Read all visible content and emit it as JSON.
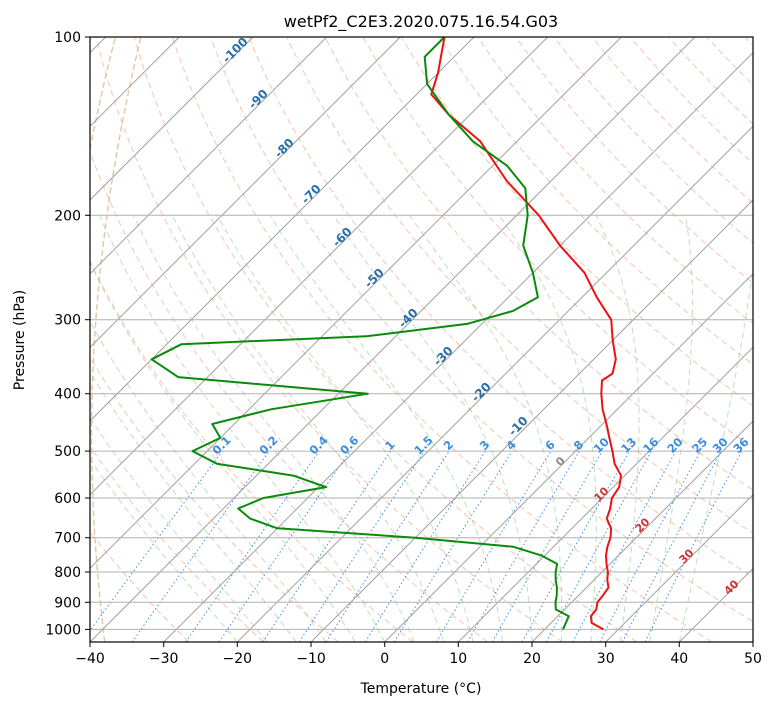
{
  "chart_data": {
    "type": "line",
    "subtype": "skew-T log-P diagram",
    "title": "wetPf2_C2E3.2020.075.16.54.G03",
    "xlabel": "Temperature (°C)",
    "ylabel": "Pressure (hPa)",
    "xlim": [
      -40,
      50
    ],
    "ylim": [
      1050,
      100
    ],
    "y_scale": "log",
    "grid": true,
    "x_ticks": [
      -40,
      -30,
      -20,
      -10,
      0,
      10,
      20,
      30,
      40,
      50
    ],
    "y_ticks": [
      100,
      200,
      300,
      400,
      500,
      600,
      700,
      800,
      900,
      1000
    ],
    "background_lines": {
      "isotherms": "gray solid, skewed 45°",
      "dry_adiabats": "dashed light red",
      "moist_adiabats": "dashed light green",
      "mixing_ratio_lines": "dotted blue",
      "wet_bulb_potential_temperature_curves": "dashed tan"
    },
    "isotherm_labels": [
      -100,
      -90,
      -80,
      -70,
      -60,
      -50,
      -40,
      -30,
      -20,
      -10
    ],
    "isotherm_label_color": "#2a6fa8",
    "mixing_ratio_labels": [
      "0.1",
      "0.2",
      "0.4",
      "0.6",
      "1",
      "1.5",
      "2",
      "3",
      "4",
      "6",
      "8",
      "10",
      "13",
      "16",
      "20",
      "25",
      "30",
      "36"
    ],
    "mixing_ratio_label_color": "#3a8ee0",
    "theta_labels_gray": [
      "0"
    ],
    "theta_labels_red": [
      "10",
      "20",
      "30",
      "40"
    ],
    "series": [
      {
        "role": "temperature",
        "color": "#ee1111",
        "points": [
          [
            28.0,
            1000
          ],
          [
            25.5,
            975
          ],
          [
            24.5,
            950
          ],
          [
            24.3,
            925
          ],
          [
            23.5,
            900
          ],
          [
            23.3,
            875
          ],
          [
            23.0,
            850
          ],
          [
            21.8,
            825
          ],
          [
            20.8,
            800
          ],
          [
            19.5,
            775
          ],
          [
            18.3,
            750
          ],
          [
            17.3,
            725
          ],
          [
            16.5,
            700
          ],
          [
            15.3,
            675
          ],
          [
            13.4,
            650
          ],
          [
            12.5,
            625
          ],
          [
            11.3,
            600
          ],
          [
            10.8,
            575
          ],
          [
            9.5,
            550
          ],
          [
            7.0,
            525
          ],
          [
            5.0,
            500
          ],
          [
            2.8,
            475
          ],
          [
            0.5,
            450
          ],
          [
            -2.0,
            425
          ],
          [
            -4.3,
            400
          ],
          [
            -6.0,
            380
          ],
          [
            -5.5,
            370
          ],
          [
            -7.0,
            350
          ],
          [
            -10.0,
            325
          ],
          [
            -13.0,
            300
          ],
          [
            -18.0,
            275
          ],
          [
            -23.0,
            250
          ],
          [
            -30.0,
            225
          ],
          [
            -37.0,
            200
          ],
          [
            -46.0,
            175
          ],
          [
            -55.0,
            150
          ],
          [
            -63.0,
            135
          ],
          [
            -68.0,
            125
          ],
          [
            -70.0,
            115
          ],
          [
            -74.0,
            100
          ]
        ]
      },
      {
        "role": "dewpoint",
        "color": "#0a8a0a",
        "points": [
          [
            22.5,
            1000
          ],
          [
            21.5,
            950
          ],
          [
            18.8,
            925
          ],
          [
            17.8,
            900
          ],
          [
            17.0,
            875
          ],
          [
            16.0,
            850
          ],
          [
            14.8,
            825
          ],
          [
            13.7,
            800
          ],
          [
            12.8,
            775
          ],
          [
            9.5,
            750
          ],
          [
            4.5,
            725
          ],
          [
            -10.0,
            700
          ],
          [
            -30.0,
            675
          ],
          [
            -35.0,
            650
          ],
          [
            -38.0,
            625
          ],
          [
            -36.0,
            600
          ],
          [
            -29.0,
            575
          ],
          [
            -35.0,
            550
          ],
          [
            -47.0,
            525
          ],
          [
            -52.0,
            500
          ],
          [
            -50.0,
            475
          ],
          [
            -53.0,
            450
          ],
          [
            -47.0,
            425
          ],
          [
            -36.0,
            400
          ],
          [
            -64.0,
            375
          ],
          [
            -70.0,
            350
          ],
          [
            -68.0,
            330
          ],
          [
            -44.0,
            320
          ],
          [
            -32.0,
            305
          ],
          [
            -27.5,
            290
          ],
          [
            -26.0,
            275
          ],
          [
            -30.0,
            250
          ],
          [
            -35.0,
            225
          ],
          [
            -38.5,
            200
          ],
          [
            -42.5,
            180
          ],
          [
            -48.0,
            165
          ],
          [
            -56.0,
            150
          ],
          [
            -63.0,
            135
          ],
          [
            -70.0,
            120
          ],
          [
            -74.0,
            108
          ],
          [
            -74.0,
            100
          ]
        ]
      }
    ]
  }
}
